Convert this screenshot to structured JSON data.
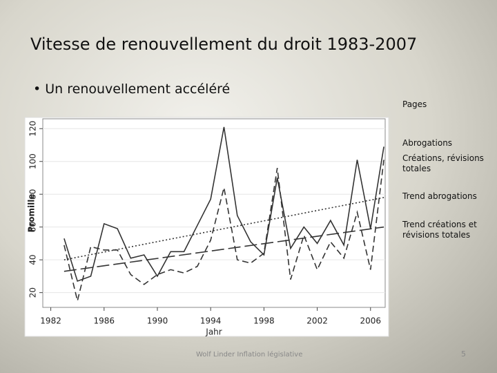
{
  "slide": {
    "title": "Vitesse de renouvellement du droit 1983-2007",
    "bullet": "Un renouvellement accéléré",
    "footer": "Wolf Linder Inflation législative",
    "page": "5"
  },
  "chart_data": {
    "type": "line",
    "legend_title": "Pages",
    "xlabel": "Jahr",
    "ylabel": "Promille",
    "x": [
      1983,
      1984,
      1985,
      1986,
      1987,
      1988,
      1989,
      1990,
      1991,
      1992,
      1993,
      1994,
      1995,
      1996,
      1997,
      1998,
      1999,
      2000,
      2001,
      2002,
      2003,
      2004,
      2005,
      2006,
      2007
    ],
    "series": [
      {
        "name": "Abrogations",
        "color": "#333333",
        "style": "dashed",
        "values": [
          49,
          15,
          48,
          46,
          46,
          31,
          25,
          31,
          34,
          32,
          36,
          52,
          84,
          40,
          38,
          44,
          96,
          28,
          55,
          34,
          51,
          41,
          69,
          34,
          101
        ]
      },
      {
        "name": "Créations, révisions totales",
        "color": "#333333",
        "style": "solid",
        "values": [
          53,
          27,
          30,
          62,
          59,
          41,
          43,
          30,
          45,
          45,
          61,
          77,
          121,
          67,
          51,
          43,
          90,
          47,
          60,
          50,
          64,
          49,
          101,
          59,
          109
        ]
      },
      {
        "name": "Trend abrogations",
        "color": "#333333",
        "style": "longdash",
        "x": [
          1983,
          2007
        ],
        "values": [
          33,
          60
        ]
      },
      {
        "name": "Trend créations et révisions totales",
        "color": "#333333",
        "style": "dotted",
        "x": [
          1983,
          2007
        ],
        "values": [
          40,
          78
        ]
      }
    ],
    "xlim": [
      1981.4,
      2007.1
    ],
    "xticks": [
      1982,
      1986,
      1990,
      1994,
      1998,
      2002,
      2006
    ],
    "ylim": [
      11,
      126
    ],
    "yticks": [
      20,
      40,
      60,
      80,
      100,
      120
    ],
    "grid": true,
    "legend": "right"
  }
}
